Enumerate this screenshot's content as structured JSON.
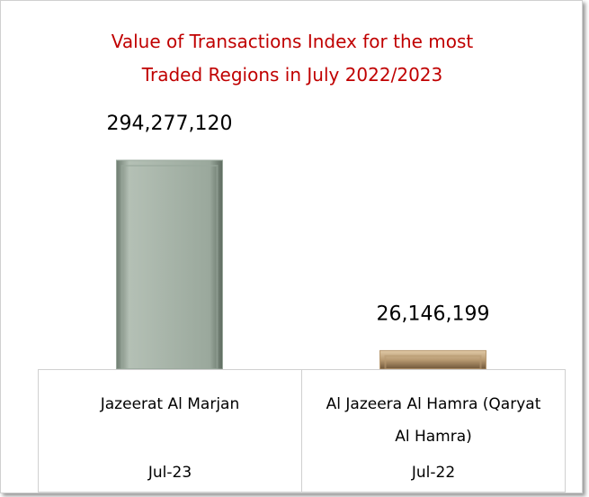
{
  "chart_data": {
    "type": "bar",
    "title": "Value of Transactions Index for the most Traded Regions in July 2022/2023",
    "categories": [
      "Jazeerat Al Marjan",
      "Al Jazeera Al Hamra (Qaryat Al Hamra)"
    ],
    "periods": [
      "Jul-23",
      "Jul-22"
    ],
    "values": [
      294277120,
      26146199
    ],
    "value_labels": [
      "294,277,120",
      "26,146,199"
    ],
    "colors": [
      "#9aa89c",
      "#b89a72"
    ]
  }
}
